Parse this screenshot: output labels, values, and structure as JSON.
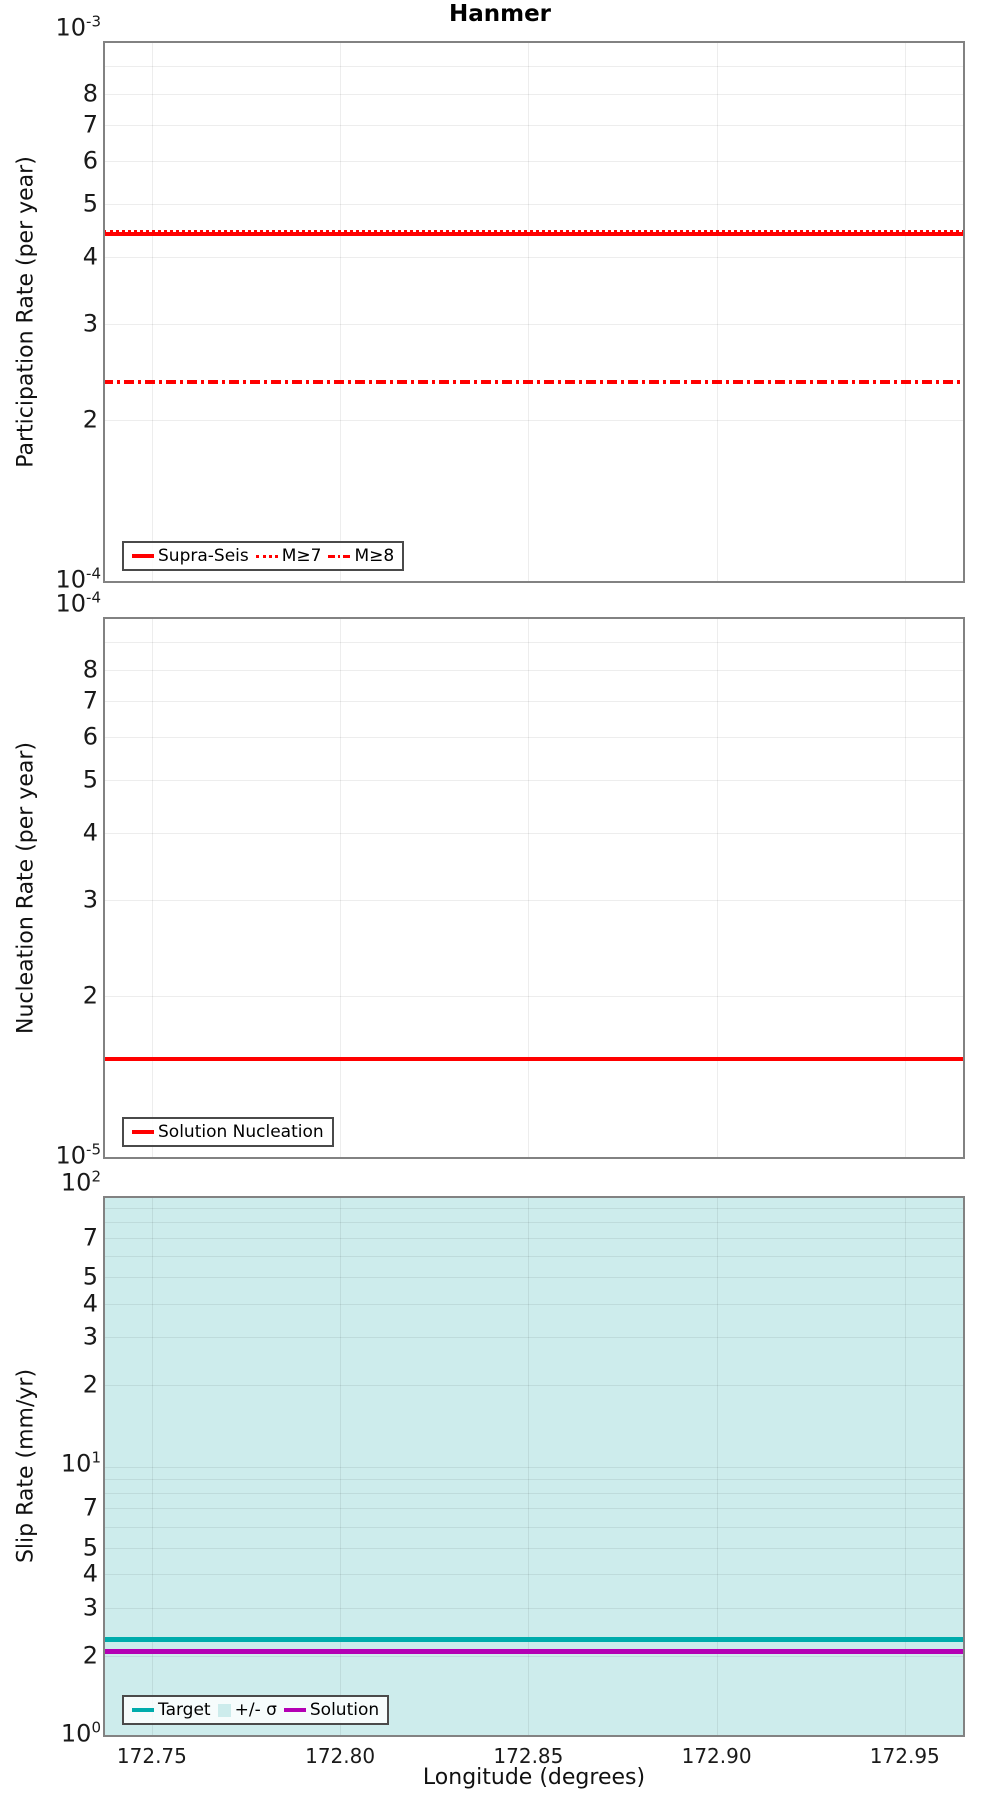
{
  "title": "Hanmer",
  "xlabel": "Longitude (degrees)",
  "x_range": [
    172.737,
    172.966
  ],
  "x_ticks": [
    172.75,
    172.8,
    172.85,
    172.9,
    172.95
  ],
  "x_tick_labels": [
    "172.75",
    "172.80",
    "172.85",
    "172.90",
    "172.95"
  ],
  "colors": {
    "red": "#FF0000",
    "teal": "#00ACAC",
    "magenta": "#B400B4",
    "sigma_band": "#CDECEC",
    "frame": "#828282"
  },
  "chart_data": [
    {
      "type": "line",
      "ylabel": "Participation Rate (per year)",
      "yscale": "log",
      "ylim": [
        0.0001,
        0.001
      ],
      "y_minor_labeled": [
        8,
        7,
        6,
        5,
        4,
        3,
        2
      ],
      "grid": true,
      "legend_position": "lower-left",
      "series": [
        {
          "name": "Supra-Seis",
          "style": "solid",
          "color": "#FF0000",
          "value": 0.00044
        },
        {
          "name": "M≥7",
          "style": "dotted",
          "color": "#FF0000",
          "value": 0.00044
        },
        {
          "name": "M≥8",
          "style": "dashdot",
          "color": "#FF0000",
          "value": 0.000235
        }
      ],
      "legend": [
        {
          "label": "Supra-Seis",
          "swatch": "line-solid",
          "color": "#FF0000"
        },
        {
          "label": "M≥7",
          "swatch": "line-dotted",
          "color": "#FF0000"
        },
        {
          "label": "M≥8",
          "swatch": "line-dashdot",
          "color": "#FF0000"
        }
      ]
    },
    {
      "type": "line",
      "ylabel": "Nucleation Rate (per year)",
      "yscale": "log",
      "ylim": [
        1e-05,
        0.0001
      ],
      "y_minor_labeled": [
        8,
        7,
        6,
        5,
        4,
        3,
        2
      ],
      "grid": true,
      "legend_position": "lower-left",
      "series": [
        {
          "name": "Solution Nucleation",
          "style": "solid",
          "color": "#FF0000",
          "value": 1.53e-05
        }
      ],
      "legend": [
        {
          "label": "Solution Nucleation",
          "swatch": "line-solid",
          "color": "#FF0000"
        }
      ]
    },
    {
      "type": "line",
      "ylabel": "Slip Rate (mm/yr)",
      "yscale": "log",
      "ylim": [
        1,
        100
      ],
      "y_minor_labeled": [
        7,
        5,
        4,
        3,
        2
      ],
      "grid": true,
      "legend_position": "lower-left",
      "band": {
        "name": "+/- σ",
        "color": "#CDECEC",
        "lo": 1,
        "hi": 100
      },
      "series": [
        {
          "name": "Target",
          "style": "solid",
          "color": "#00ACAC",
          "value": 2.3
        },
        {
          "name": "Solution",
          "style": "solid",
          "color": "#B400B4",
          "value": 2.07
        }
      ],
      "legend": [
        {
          "label": "Target",
          "swatch": "line-solid",
          "color": "#00ACAC"
        },
        {
          "label": "+/- σ",
          "swatch": "patch",
          "color": "#CDECEC"
        },
        {
          "label": "Solution",
          "swatch": "line-solid",
          "color": "#B400B4"
        }
      ]
    }
  ]
}
